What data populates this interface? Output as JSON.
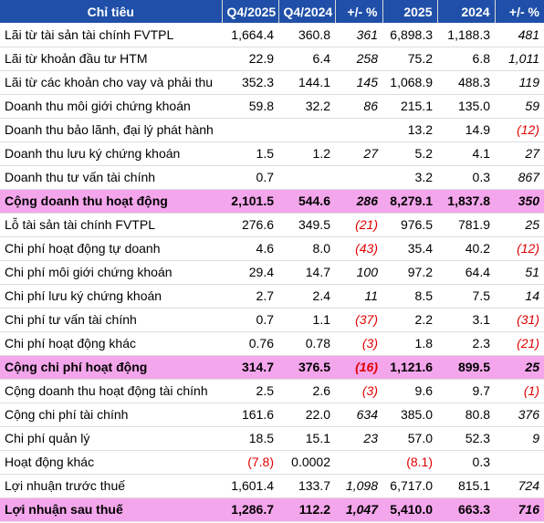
{
  "table": {
    "headers": [
      "Chỉ tiêu",
      "Q4/2025",
      "Q4/2024",
      "+/- %",
      "2025",
      "2024",
      "+/- %"
    ],
    "rows": [
      {
        "label": "Lãi từ tài sản tài chính FVTPL",
        "q4_2025": "1,664.4",
        "q4_2024": "360.8",
        "q_change": "361",
        "y2025": "6,898.3",
        "y2024": "1,188.3",
        "y_change": "481",
        "total": false
      },
      {
        "label": "Lãi từ khoản đầu tư HTM",
        "q4_2025": "22.9",
        "q4_2024": "6.4",
        "q_change": "258",
        "y2025": "75.2",
        "y2024": "6.8",
        "y_change": "1,011",
        "total": false
      },
      {
        "label": "Lãi từ các khoản cho vay và phải thu",
        "q4_2025": "352.3",
        "q4_2024": "144.1",
        "q_change": "145",
        "y2025": "1,068.9",
        "y2024": "488.3",
        "y_change": "119",
        "total": false
      },
      {
        "label": "Doanh thu môi giới chứng khoán",
        "q4_2025": "59.8",
        "q4_2024": "32.2",
        "q_change": "86",
        "y2025": "215.1",
        "y2024": "135.0",
        "y_change": "59",
        "total": false
      },
      {
        "label": "Doanh thu bảo lãnh, đại lý phát hành",
        "q4_2025": "",
        "q4_2024": "",
        "q_change": "",
        "y2025": "13.2",
        "y2024": "14.9",
        "y_change": "(12)",
        "total": false
      },
      {
        "label": "Doanh thu lưu ký chứng khoán",
        "q4_2025": "1.5",
        "q4_2024": "1.2",
        "q_change": "27",
        "y2025": "5.2",
        "y2024": "4.1",
        "y_change": "27",
        "total": false
      },
      {
        "label": "Doanh thu tư vấn tài chính",
        "q4_2025": "0.7",
        "q4_2024": "",
        "q_change": "",
        "y2025": "3.2",
        "y2024": "0.3",
        "y_change": "867",
        "total": false
      },
      {
        "label": "Cộng doanh thu hoạt động",
        "q4_2025": "2,101.5",
        "q4_2024": "544.6",
        "q_change": "286",
        "y2025": "8,279.1",
        "y2024": "1,837.8",
        "y_change": "350",
        "total": true
      },
      {
        "label": "Lỗ tài sản tài chính FVTPL",
        "q4_2025": "276.6",
        "q4_2024": "349.5",
        "q_change": "(21)",
        "y2025": "976.5",
        "y2024": "781.9",
        "y_change": "25",
        "total": false
      },
      {
        "label": "Chi phí hoạt động tự doanh",
        "q4_2025": "4.6",
        "q4_2024": "8.0",
        "q_change": "(43)",
        "y2025": "35.4",
        "y2024": "40.2",
        "y_change": "(12)",
        "total": false
      },
      {
        "label": "Chi phí môi giới chứng khoán",
        "q4_2025": "29.4",
        "q4_2024": "14.7",
        "q_change": "100",
        "y2025": "97.2",
        "y2024": "64.4",
        "y_change": "51",
        "total": false
      },
      {
        "label": "Chi phí lưu ký chứng khoán",
        "q4_2025": "2.7",
        "q4_2024": "2.4",
        "q_change": "11",
        "y2025": "8.5",
        "y2024": "7.5",
        "y_change": "14",
        "total": false
      },
      {
        "label": "Chi phí tư vấn tài chính",
        "q4_2025": "0.7",
        "q4_2024": "1.1",
        "q_change": "(37)",
        "y2025": "2.2",
        "y2024": "3.1",
        "y_change": "(31)",
        "total": false
      },
      {
        "label": "Chi phí hoạt động khác",
        "q4_2025": "0.76",
        "q4_2024": "0.78",
        "q_change": "(3)",
        "y2025": "1.8",
        "y2024": "2.3",
        "y_change": "(21)",
        "total": false
      },
      {
        "label": "Cộng chi phí hoạt động",
        "q4_2025": "314.7",
        "q4_2024": "376.5",
        "q_change": "(16)",
        "y2025": "1,121.6",
        "y2024": "899.5",
        "y_change": "25",
        "total": true
      },
      {
        "label": "Cộng doanh thu hoạt động tài chính",
        "q4_2025": "2.5",
        "q4_2024": "2.6",
        "q_change": "(3)",
        "y2025": "9.6",
        "y2024": "9.7",
        "y_change": "(1)",
        "total": false
      },
      {
        "label": "Cộng chi phí tài chính",
        "q4_2025": "161.6",
        "q4_2024": "22.0",
        "q_change": "634",
        "y2025": "385.0",
        "y2024": "80.8",
        "y_change": "376",
        "total": false
      },
      {
        "label": "Chi phí quản lý",
        "q4_2025": "18.5",
        "q4_2024": "15.1",
        "q_change": "23",
        "y2025": "57.0",
        "y2024": "52.3",
        "y_change": "9",
        "total": false
      },
      {
        "label": "Hoạt động khác",
        "q4_2025": "(7.8)",
        "q4_2024": "0.0002",
        "q_change": "",
        "y2025": "(8.1)",
        "y2024": "0.3",
        "y_change": "",
        "total": false
      },
      {
        "label": "Lợi nhuận trước thuế",
        "q4_2025": "1,601.4",
        "q4_2024": "133.7",
        "q_change": "1,098",
        "y2025": "6,717.0",
        "y2024": "815.1",
        "y_change": "724",
        "total": false
      },
      {
        "label": "Lợi nhuận sau thuế",
        "q4_2025": "1,286.7",
        "q4_2024": "112.2",
        "q_change": "1,047",
        "y2025": "5,410.0",
        "y2024": "663.3",
        "y_change": "716",
        "total": true
      }
    ]
  },
  "colors": {
    "header_bg": "#1f4fa8",
    "header_text": "#ffffff",
    "total_row_bg": "#f4a6ec",
    "negative_text": "#e00000"
  }
}
